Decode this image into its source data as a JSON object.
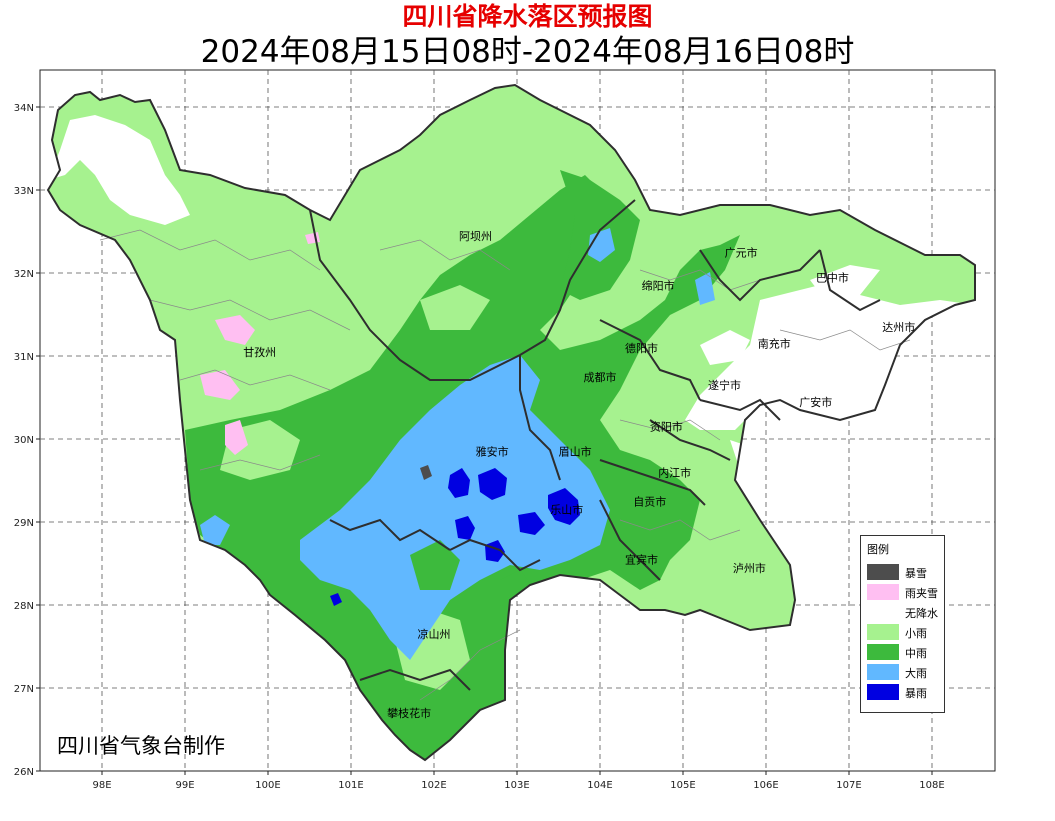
{
  "title": "四川省降水落区预报图",
  "subtitle": "2024年08月15日08时-2024年08月16日08时",
  "credit": "四川省气象台制作",
  "axes": {
    "lat_labels": [
      "34N",
      "33N",
      "32N",
      "31N",
      "30N",
      "29N",
      "28N",
      "27N",
      "26N"
    ],
    "lon_labels": [
      "98E",
      "99E",
      "100E",
      "101E",
      "102E",
      "103E",
      "104E",
      "105E",
      "106E",
      "107E",
      "108E"
    ],
    "grid": "dashed"
  },
  "cities": [
    {
      "name": "阿坝州",
      "lon": 102.5,
      "lat": 32.4
    },
    {
      "name": "甘孜州",
      "lon": 99.9,
      "lat": 31.0
    },
    {
      "name": "广元市",
      "lon": 105.7,
      "lat": 32.2
    },
    {
      "name": "巴中市",
      "lon": 106.8,
      "lat": 31.9
    },
    {
      "name": "绵阳市",
      "lon": 104.7,
      "lat": 31.8
    },
    {
      "name": "德阳市",
      "lon": 104.5,
      "lat": 31.05
    },
    {
      "name": "南充市",
      "lon": 106.1,
      "lat": 31.1
    },
    {
      "name": "达州市",
      "lon": 107.6,
      "lat": 31.3
    },
    {
      "name": "成都市",
      "lon": 104.0,
      "lat": 30.7
    },
    {
      "name": "遂宁市",
      "lon": 105.5,
      "lat": 30.6
    },
    {
      "name": "广安市",
      "lon": 106.6,
      "lat": 30.4
    },
    {
      "name": "资阳市",
      "lon": 104.8,
      "lat": 30.1
    },
    {
      "name": "雅安市",
      "lon": 102.7,
      "lat": 29.8
    },
    {
      "name": "眉山市",
      "lon": 103.7,
      "lat": 29.8
    },
    {
      "name": "内江市",
      "lon": 104.9,
      "lat": 29.55
    },
    {
      "name": "乐山市",
      "lon": 103.6,
      "lat": 29.1
    },
    {
      "name": "自贡市",
      "lon": 104.6,
      "lat": 29.2
    },
    {
      "name": "宜宾市",
      "lon": 104.5,
      "lat": 28.5
    },
    {
      "name": "泸州市",
      "lon": 105.8,
      "lat": 28.4
    },
    {
      "name": "凉山州",
      "lon": 102.0,
      "lat": 27.6
    },
    {
      "name": "攀枝花市",
      "lon": 101.7,
      "lat": 26.65
    }
  ],
  "legend": {
    "title": "图例",
    "items": [
      {
        "label": "暴雪",
        "color": "#4d4d4d"
      },
      {
        "label": "雨夹雪",
        "color": "#ffbff2"
      },
      {
        "label": "无降水",
        "color": "#ffffff"
      },
      {
        "label": "小雨",
        "color": "#a6f28f"
      },
      {
        "label": "中雨",
        "color": "#3dba3d"
      },
      {
        "label": "大雨",
        "color": "#61b8ff"
      },
      {
        "label": "暴雨",
        "color": "#0000e1"
      }
    ]
  }
}
